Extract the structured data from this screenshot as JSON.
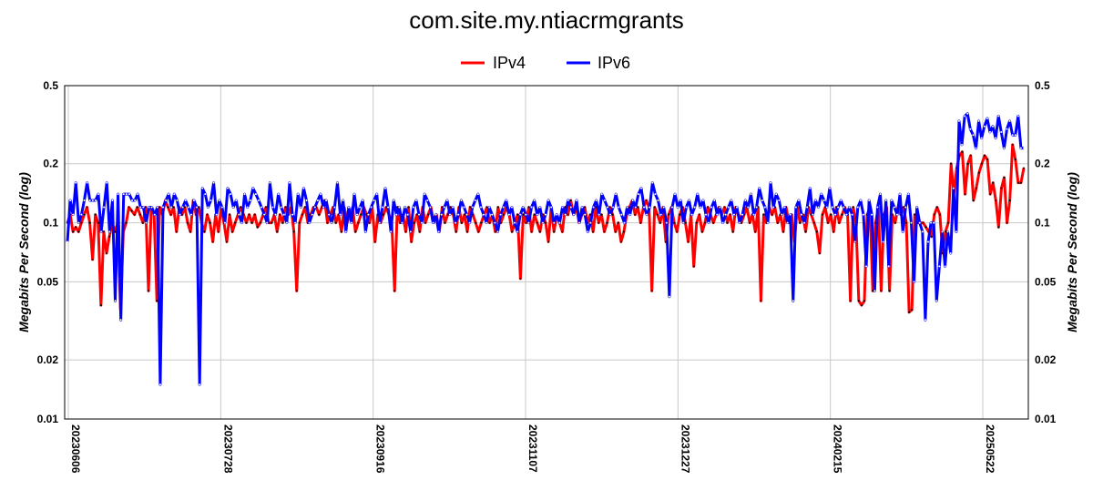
{
  "chart_data": {
    "type": "line",
    "title": "com.site.my.ntiacrmgrants",
    "ylabel": "Megabits Per Second (log)",
    "ylabel_right": "Megabits Per Second (log)",
    "yscale": "log",
    "ylim": [
      0.01,
      0.5
    ],
    "yticks": [
      "0.01",
      "0.02",
      "0.05",
      "0.1",
      "0.2",
      "0.5"
    ],
    "xticks": [
      "20230606",
      "20230728",
      "20230916",
      "20231107",
      "20231227",
      "20240215",
      "20250522"
    ],
    "grid": true,
    "legend_position": "top-center",
    "series": [
      {
        "name": "IPv4",
        "color": "#ff0000",
        "values": [
          0.1,
          0.11,
          0.09,
          0.095,
          0.09,
          0.1,
          0.11,
          0.12,
          0.1,
          0.065,
          0.11,
          0.1,
          0.038,
          0.09,
          0.07,
          0.085,
          0.1,
          0.09,
          0.1,
          0.036,
          0.09,
          0.1,
          0.12,
          0.115,
          0.11,
          0.12,
          0.11,
          0.1,
          0.12,
          0.045,
          0.12,
          0.11,
          0.04,
          0.12,
          0.11,
          0.13,
          0.12,
          0.11,
          0.12,
          0.09,
          0.12,
          0.11,
          0.12,
          0.1,
          0.09,
          0.13,
          0.11,
          0.12,
          0.1,
          0.09,
          0.11,
          0.1,
          0.08,
          0.11,
          0.09,
          0.12,
          0.1,
          0.08,
          0.11,
          0.09,
          0.1,
          0.11,
          0.12,
          0.11,
          0.1,
          0.11,
          0.1,
          0.11,
          0.095,
          0.1,
          0.11,
          0.12,
          0.1,
          0.1,
          0.11,
          0.09,
          0.11,
          0.1,
          0.12,
          0.11,
          0.12,
          0.09,
          0.045,
          0.1,
          0.11,
          0.12,
          0.1,
          0.11,
          0.12,
          0.12,
          0.11,
          0.12,
          0.13,
          0.1,
          0.11,
          0.12,
          0.1,
          0.11,
          0.09,
          0.12,
          0.1,
          0.11,
          0.12,
          0.09,
          0.1,
          0.11,
          0.12,
          0.11,
          0.1,
          0.12,
          0.08,
          0.11,
          0.1,
          0.11,
          0.12,
          0.11,
          0.1,
          0.045,
          0.12,
          0.1,
          0.11,
          0.09,
          0.12,
          0.08,
          0.1,
          0.11,
          0.09,
          0.12,
          0.1,
          0.11,
          0.12,
          0.1,
          0.11,
          0.09,
          0.12,
          0.1,
          0.11,
          0.12,
          0.11,
          0.09,
          0.12,
          0.1,
          0.11,
          0.09,
          0.12,
          0.11,
          0.1,
          0.09,
          0.1,
          0.11,
          0.12,
          0.1,
          0.11,
          0.09,
          0.12,
          0.1,
          0.11,
          0.12,
          0.11,
          0.09,
          0.1,
          0.11,
          0.052,
          0.11,
          0.1,
          0.12,
          0.09,
          0.11,
          0.1,
          0.09,
          0.11,
          0.1,
          0.08,
          0.12,
          0.09,
          0.11,
          0.1,
          0.09,
          0.12,
          0.11,
          0.13,
          0.11,
          0.12,
          0.1,
          0.11,
          0.12,
          0.1,
          0.11,
          0.09,
          0.12,
          0.1,
          0.11,
          0.09,
          0.1,
          0.12,
          0.11,
          0.09,
          0.1,
          0.08,
          0.09,
          0.11,
          0.12,
          0.13,
          0.11,
          0.12,
          0.1,
          0.12,
          0.13,
          0.12,
          0.045,
          0.12,
          0.11,
          0.1,
          0.12,
          0.08,
          0.11,
          0.12,
          0.1,
          0.09,
          0.11,
          0.12,
          0.1,
          0.08,
          0.11,
          0.06,
          0.1,
          0.11,
          0.09,
          0.1,
          0.12,
          0.11,
          0.1,
          0.11,
          0.12,
          0.11,
          0.12,
          0.1,
          0.11,
          0.09,
          0.12,
          0.11,
          0.1,
          0.11,
          0.12,
          0.1,
          0.11,
          0.09,
          0.12,
          0.04,
          0.11,
          0.1,
          0.12,
          0.11,
          0.12,
          0.1,
          0.11,
          0.09,
          0.12,
          0.1,
          0.11,
          0.08,
          0.12,
          0.1,
          0.11,
          0.09,
          0.12,
          0.11,
          0.1,
          0.09,
          0.07,
          0.11,
          0.12,
          0.1,
          0.11,
          0.09,
          0.12,
          0.1,
          0.11,
          0.12,
          0.11,
          0.04,
          0.12,
          0.1,
          0.04,
          0.038,
          0.04,
          0.11,
          0.12,
          0.045,
          0.1,
          0.12,
          0.045,
          0.11,
          0.12,
          0.045,
          0.11,
          0.1,
          0.12,
          0.11,
          0.12,
          0.1,
          0.035,
          0.036,
          0.11,
          0.1,
          0.1,
          0.1,
          0.095,
          0.09,
          0.085,
          0.11,
          0.12,
          0.11,
          0.07,
          0.09,
          0.1,
          0.2,
          0.14,
          0.19,
          0.22,
          0.23,
          0.14,
          0.2,
          0.22,
          0.13,
          0.15,
          0.18,
          0.2,
          0.22,
          0.21,
          0.14,
          0.16,
          0.13,
          0.095,
          0.15,
          0.17,
          0.1,
          0.13,
          0.25,
          0.21,
          0.16,
          0.16,
          0.19
        ],
        "marker_color": "#000000"
      },
      {
        "name": "IPv6",
        "color": "#0000ff",
        "values": [
          0.08,
          0.13,
          0.11,
          0.16,
          0.1,
          0.11,
          0.13,
          0.16,
          0.13,
          0.13,
          0.13,
          0.14,
          0.09,
          0.12,
          0.16,
          0.09,
          0.13,
          0.04,
          0.14,
          0.032,
          0.14,
          0.14,
          0.14,
          0.13,
          0.13,
          0.14,
          0.12,
          0.12,
          0.1,
          0.12,
          0.12,
          0.11,
          0.12,
          0.015,
          0.12,
          0.13,
          0.14,
          0.12,
          0.14,
          0.13,
          0.11,
          0.12,
          0.13,
          0.12,
          0.11,
          0.13,
          0.12,
          0.015,
          0.15,
          0.14,
          0.12,
          0.13,
          0.16,
          0.11,
          0.13,
          0.12,
          0.1,
          0.15,
          0.14,
          0.12,
          0.13,
          0.11,
          0.1,
          0.14,
          0.12,
          0.13,
          0.15,
          0.14,
          0.13,
          0.12,
          0.11,
          0.1,
          0.16,
          0.12,
          0.11,
          0.14,
          0.12,
          0.11,
          0.1,
          0.16,
          0.11,
          0.1,
          0.14,
          0.12,
          0.15,
          0.13,
          0.1,
          0.11,
          0.12,
          0.13,
          0.14,
          0.12,
          0.13,
          0.11,
          0.1,
          0.12,
          0.16,
          0.11,
          0.13,
          0.09,
          0.12,
          0.1,
          0.14,
          0.11,
          0.12,
          0.13,
          0.09,
          0.11,
          0.12,
          0.13,
          0.14,
          0.1,
          0.12,
          0.15,
          0.12,
          0.09,
          0.13,
          0.11,
          0.12,
          0.1,
          0.12,
          0.11,
          0.09,
          0.12,
          0.13,
          0.11,
          0.1,
          0.14,
          0.13,
          0.12,
          0.1,
          0.11,
          0.09,
          0.11,
          0.12,
          0.13,
          0.11,
          0.12,
          0.1,
          0.11,
          0.13,
          0.12,
          0.11,
          0.1,
          0.12,
          0.13,
          0.14,
          0.12,
          0.11,
          0.1,
          0.12,
          0.11,
          0.1,
          0.09,
          0.11,
          0.12,
          0.13,
          0.11,
          0.12,
          0.1,
          0.09,
          0.11,
          0.12,
          0.11,
          0.1,
          0.12,
          0.13,
          0.11,
          0.12,
          0.1,
          0.11,
          0.13,
          0.12,
          0.1,
          0.11,
          0.1,
          0.12,
          0.11,
          0.13,
          0.12,
          0.11,
          0.13,
          0.1,
          0.12,
          0.11,
          0.09,
          0.1,
          0.12,
          0.13,
          0.11,
          0.14,
          0.13,
          0.12,
          0.11,
          0.12,
          0.14,
          0.12,
          0.11,
          0.1,
          0.12,
          0.11,
          0.13,
          0.12,
          0.14,
          0.15,
          0.12,
          0.11,
          0.12,
          0.16,
          0.14,
          0.13,
          0.11,
          0.12,
          0.1,
          0.042,
          0.12,
          0.14,
          0.12,
          0.13,
          0.1,
          0.12,
          0.13,
          0.11,
          0.12,
          0.14,
          0.12,
          0.13,
          0.11,
          0.1,
          0.12,
          0.13,
          0.11,
          0.12,
          0.1,
          0.11,
          0.12,
          0.13,
          0.11,
          0.12,
          0.1,
          0.11,
          0.13,
          0.12,
          0.14,
          0.11,
          0.12,
          0.15,
          0.13,
          0.12,
          0.1,
          0.16,
          0.12,
          0.14,
          0.13,
          0.11,
          0.12,
          0.1,
          0.11,
          0.04,
          0.12,
          0.13,
          0.11,
          0.1,
          0.12,
          0.15,
          0.11,
          0.13,
          0.12,
          0.14,
          0.13,
          0.12,
          0.15,
          0.12,
          0.11,
          0.12,
          0.13,
          0.12,
          0.11,
          0.12,
          0.11,
          0.08,
          0.12,
          0.13,
          0.11,
          0.06,
          0.13,
          0.11,
          0.045,
          0.12,
          0.14,
          0.08,
          0.13,
          0.06,
          0.13,
          0.12,
          0.11,
          0.14,
          0.09,
          0.12,
          0.14,
          0.1,
          0.05,
          0.12,
          0.1,
          0.09,
          0.032,
          0.08,
          0.1,
          0.1,
          0.04,
          0.06,
          0.09,
          0.06,
          0.09,
          0.07,
          0.15,
          0.09,
          0.33,
          0.25,
          0.35,
          0.36,
          0.3,
          0.28,
          0.24,
          0.33,
          0.27,
          0.31,
          0.34,
          0.29,
          0.31,
          0.27,
          0.35,
          0.29,
          0.24,
          0.3,
          0.33,
          0.28,
          0.28,
          0.35,
          0.24,
          0.24
        ],
        "marker_color": "#ffffff"
      }
    ]
  }
}
